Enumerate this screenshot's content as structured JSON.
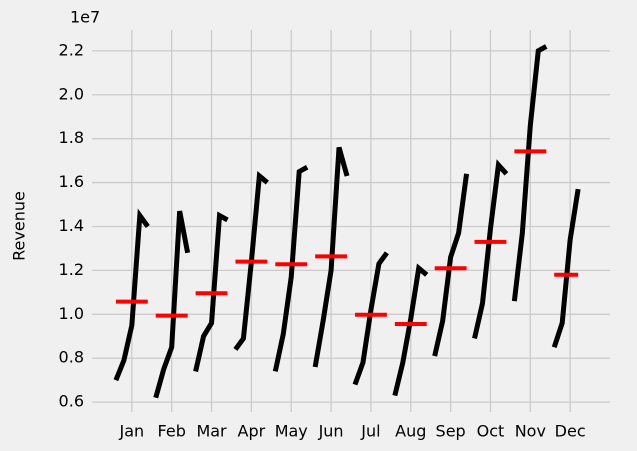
{
  "chart_data": {
    "type": "seasonal",
    "y_label": "Revenue",
    "offset_label": "1e7",
    "categories": [
      "Jan",
      "Feb",
      "Mar",
      "Apr",
      "May",
      "Jun",
      "Jul",
      "Aug",
      "Sep",
      "Oct",
      "Nov",
      "Dec"
    ],
    "values": [
      [
        0.7,
        0.79,
        0.95,
        1.45,
        1.4
      ],
      [
        0.62,
        0.75,
        0.85,
        1.47,
        1.28
      ],
      [
        0.74,
        0.9,
        0.96,
        1.45,
        1.43
      ],
      [
        0.84,
        0.89,
        1.24,
        1.63,
        1.6
      ],
      [
        0.74,
        0.91,
        1.17,
        1.65,
        1.67
      ],
      [
        0.76,
        0.97,
        1.2,
        1.76,
        1.63
      ],
      [
        0.68,
        0.78,
        1.02,
        1.23,
        1.28
      ],
      [
        0.63,
        0.78,
        0.98,
        1.21,
        1.18
      ],
      [
        0.81,
        0.97,
        1.26,
        1.37,
        1.64
      ],
      [
        0.89,
        1.05,
        1.39,
        1.68,
        1.64
      ],
      [
        1.06,
        1.37,
        1.86,
        2.2,
        2.22
      ],
      [
        0.85,
        0.96,
        1.34,
        1.57
      ]
    ],
    "means": [
      1.058,
      0.994,
      1.096,
      1.24,
      1.228,
      1.264,
      0.998,
      0.956,
      1.21,
      1.33,
      1.742,
      1.18
    ],
    "color": "#000000",
    "mean_color": "#ff0000",
    "ylim": [
      0.555,
      2.295
    ],
    "yticks": [
      0.6,
      0.8,
      {
        "value": 1.0,
        "label": "1.0"
      },
      1.2,
      1.4,
      1.6,
      1.8,
      {
        "value": 2.0,
        "label": "2.0"
      },
      2.2
    ],
    "grid": true
  }
}
